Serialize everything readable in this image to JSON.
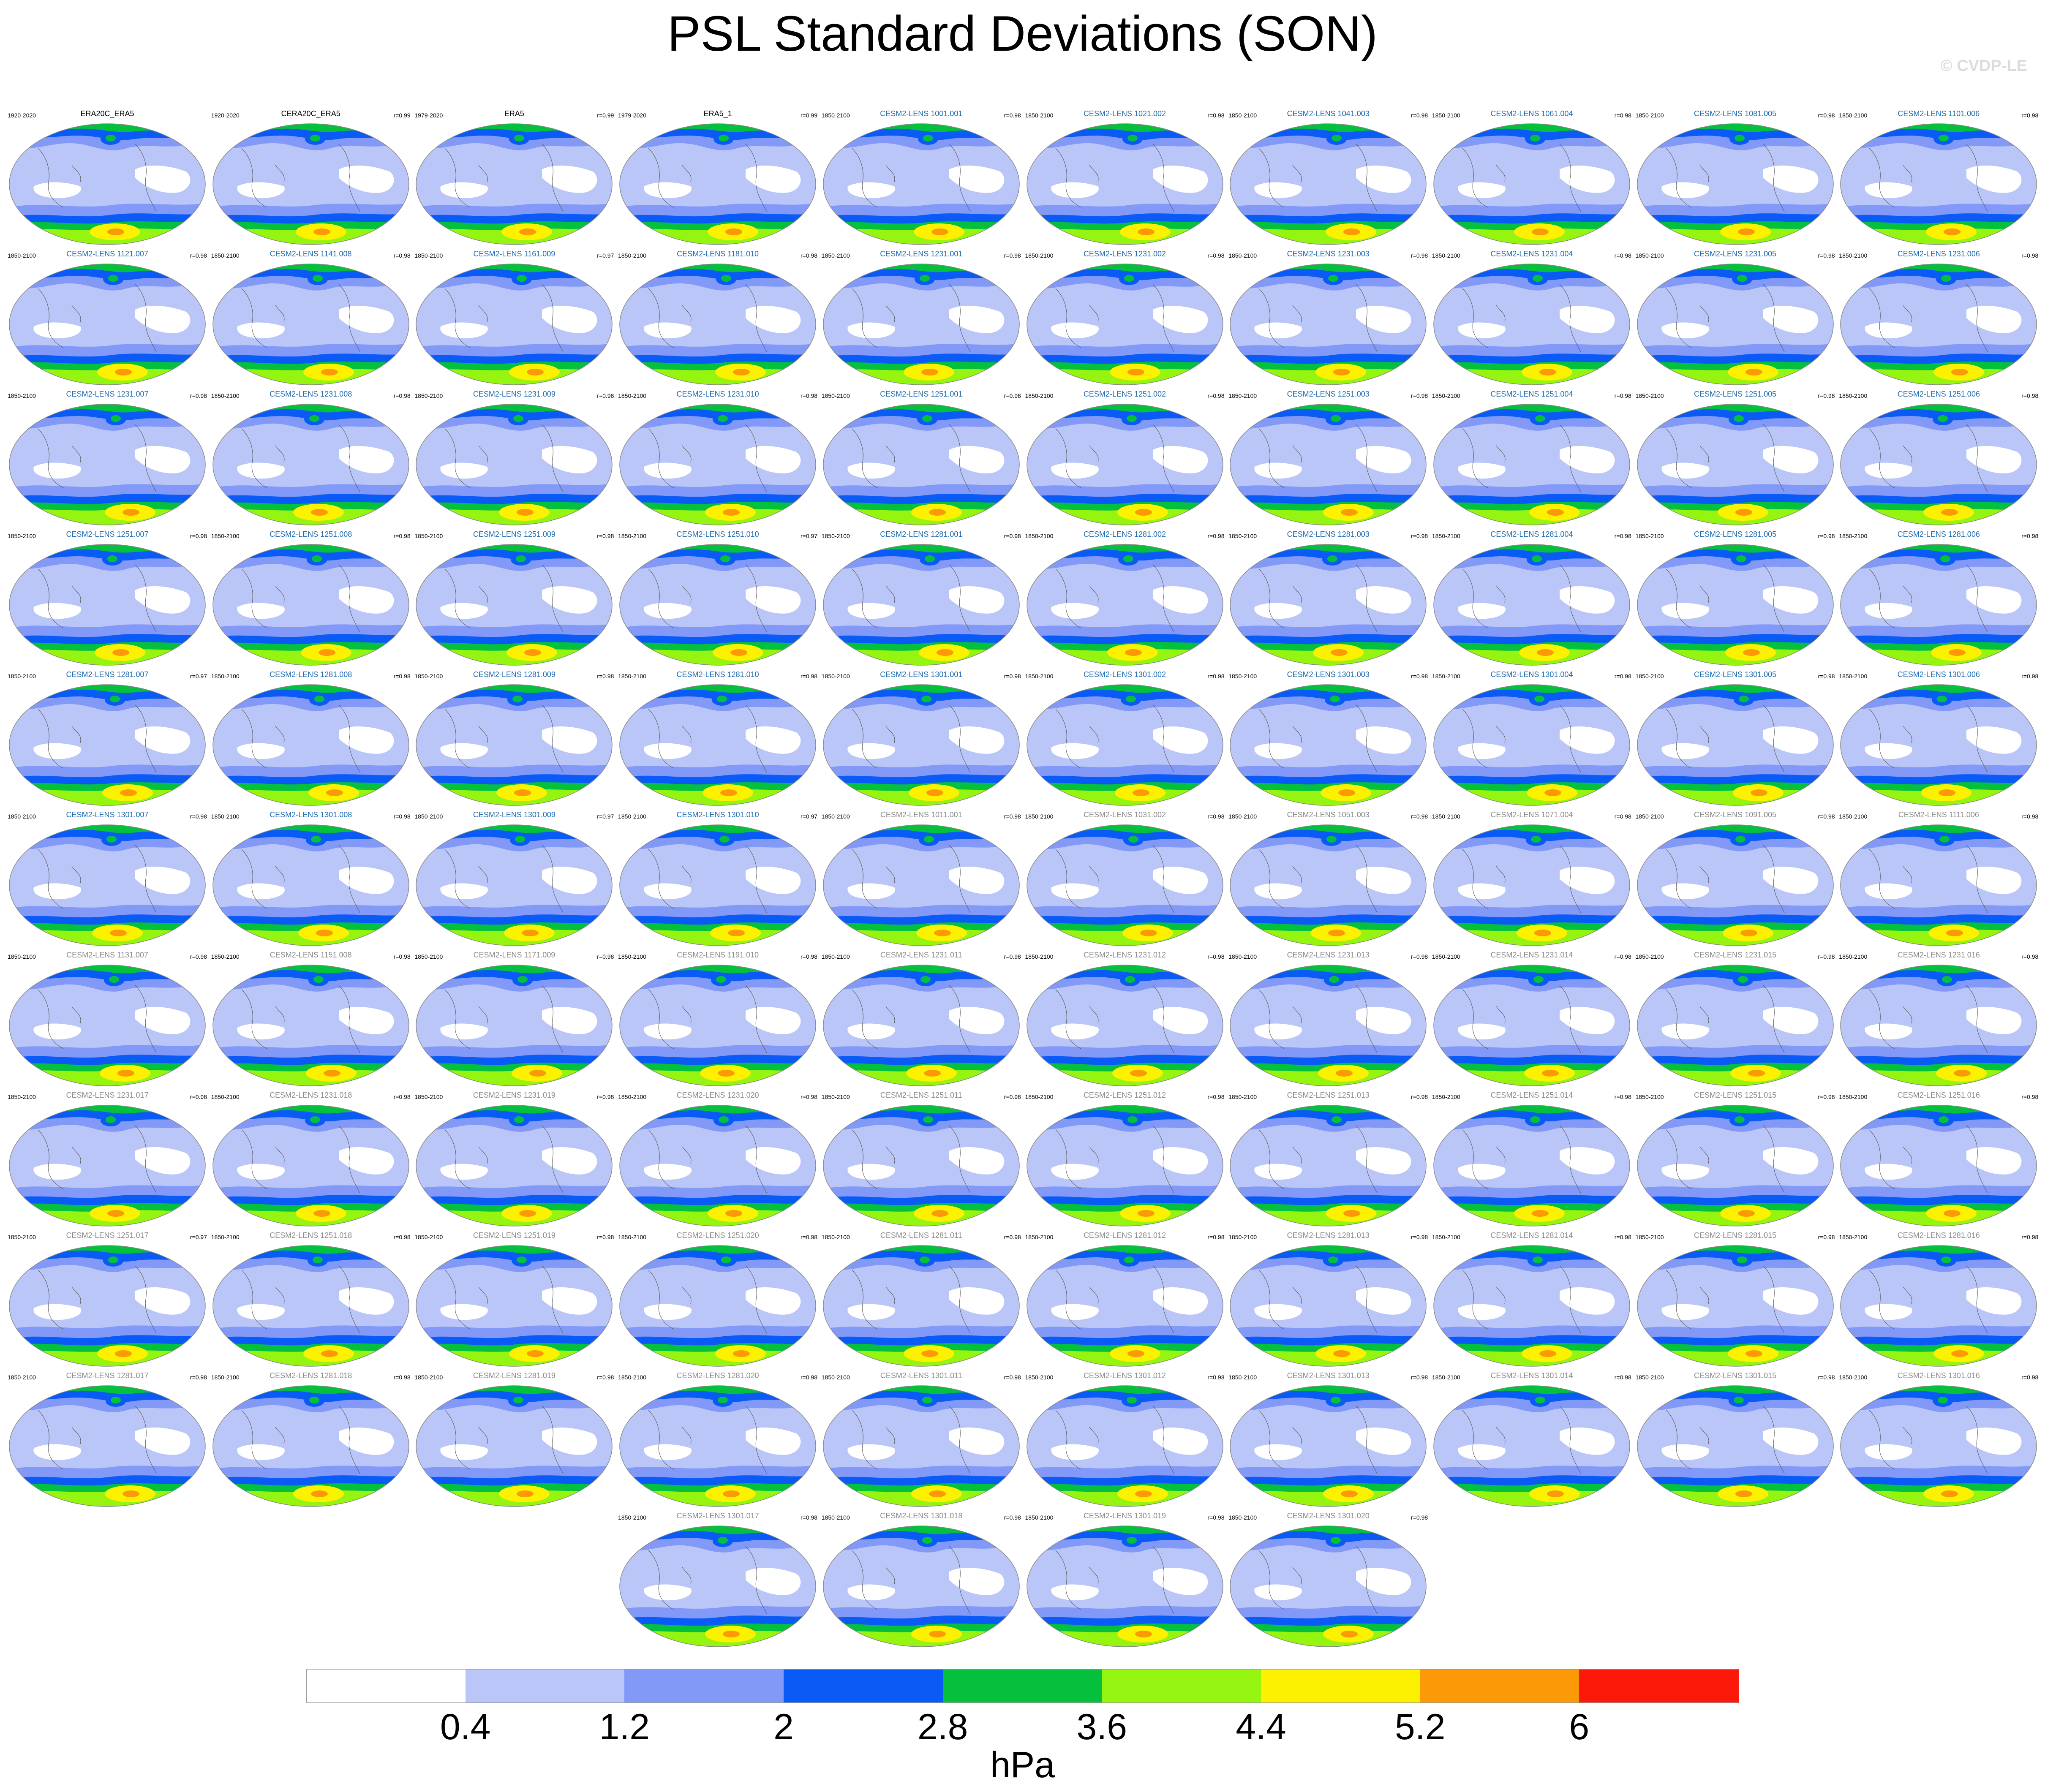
{
  "chart_data": {
    "type": "map-panels",
    "title": "PSL Standard Deviations (SON)",
    "watermark": "© CVDP-LE",
    "units": "hPa",
    "colorbar": {
      "levels": [
        "0.4",
        "1.2",
        "2",
        "2.8",
        "3.6",
        "4.4",
        "5.2",
        "6"
      ],
      "colors": [
        "#ffffff",
        "#b9c6f7",
        "#8299f8",
        "#0a5af5",
        "#05c03c",
        "#96f510",
        "#fbf100",
        "#fb9a06",
        "#fb1808"
      ]
    },
    "panel_colors": {
      "obs": "#000000",
      "group1": "#1f6bb0",
      "group2": "#8a8a8a"
    },
    "panels": [
      {
        "title": "ERA20C_ERA5",
        "years": "1920-2020",
        "r": "",
        "group": "obs"
      },
      {
        "title": "CERA20C_ERA5",
        "years": "1920-2020",
        "r": "r=0.99",
        "group": "obs"
      },
      {
        "title": "ERA5",
        "years": "1979-2020",
        "r": "r=0.99",
        "group": "obs"
      },
      {
        "title": "ERA5_1",
        "years": "1979-2020",
        "r": "r=0.99",
        "group": "obs"
      },
      {
        "title": "CESM2-LENS 1001.001",
        "years": "1850-2100",
        "r": "r=0.98",
        "group": "group1"
      },
      {
        "title": "CESM2-LENS 1021.002",
        "years": "1850-2100",
        "r": "r=0.98",
        "group": "group1"
      },
      {
        "title": "CESM2-LENS 1041.003",
        "years": "1850-2100",
        "r": "r=0.98",
        "group": "group1"
      },
      {
        "title": "CESM2-LENS 1061.004",
        "years": "1850-2100",
        "r": "r=0.98",
        "group": "group1"
      },
      {
        "title": "CESM2-LENS 1081.005",
        "years": "1850-2100",
        "r": "r=0.98",
        "group": "group1"
      },
      {
        "title": "CESM2-LENS 1101.006",
        "years": "1850-2100",
        "r": "r=0.98",
        "group": "group1"
      },
      {
        "title": "CESM2-LENS 1121.007",
        "years": "1850-2100",
        "r": "r=0.98",
        "group": "group1"
      },
      {
        "title": "CESM2-LENS 1141.008",
        "years": "1850-2100",
        "r": "r=0.98",
        "group": "group1"
      },
      {
        "title": "CESM2-LENS 1161.009",
        "years": "1850-2100",
        "r": "r=0.97",
        "group": "group1"
      },
      {
        "title": "CESM2-LENS 1181.010",
        "years": "1850-2100",
        "r": "r=0.98",
        "group": "group1"
      },
      {
        "title": "CESM2-LENS 1231.001",
        "years": "1850-2100",
        "r": "r=0.98",
        "group": "group1"
      },
      {
        "title": "CESM2-LENS 1231.002",
        "years": "1850-2100",
        "r": "r=0.98",
        "group": "group1"
      },
      {
        "title": "CESM2-LENS 1231.003",
        "years": "1850-2100",
        "r": "r=0.98",
        "group": "group1"
      },
      {
        "title": "CESM2-LENS 1231.004",
        "years": "1850-2100",
        "r": "r=0.98",
        "group": "group1"
      },
      {
        "title": "CESM2-LENS 1231.005",
        "years": "1850-2100",
        "r": "r=0.98",
        "group": "group1"
      },
      {
        "title": "CESM2-LENS 1231.006",
        "years": "1850-2100",
        "r": "r=0.98",
        "group": "group1"
      },
      {
        "title": "CESM2-LENS 1231.007",
        "years": "1850-2100",
        "r": "r=0.98",
        "group": "group1"
      },
      {
        "title": "CESM2-LENS 1231.008",
        "years": "1850-2100",
        "r": "r=0.98",
        "group": "group1"
      },
      {
        "title": "CESM2-LENS 1231.009",
        "years": "1850-2100",
        "r": "r=0.98",
        "group": "group1"
      },
      {
        "title": "CESM2-LENS 1231.010",
        "years": "1850-2100",
        "r": "r=0.98",
        "group": "group1"
      },
      {
        "title": "CESM2-LENS 1251.001",
        "years": "1850-2100",
        "r": "r=0.98",
        "group": "group1"
      },
      {
        "title": "CESM2-LENS 1251.002",
        "years": "1850-2100",
        "r": "r=0.98",
        "group": "group1"
      },
      {
        "title": "CESM2-LENS 1251.003",
        "years": "1850-2100",
        "r": "r=0.98",
        "group": "group1"
      },
      {
        "title": "CESM2-LENS 1251.004",
        "years": "1850-2100",
        "r": "r=0.98",
        "group": "group1"
      },
      {
        "title": "CESM2-LENS 1251.005",
        "years": "1850-2100",
        "r": "r=0.98",
        "group": "group1"
      },
      {
        "title": "CESM2-LENS 1251.006",
        "years": "1850-2100",
        "r": "r=0.98",
        "group": "group1"
      },
      {
        "title": "CESM2-LENS 1251.007",
        "years": "1850-2100",
        "r": "r=0.98",
        "group": "group1"
      },
      {
        "title": "CESM2-LENS 1251.008",
        "years": "1850-2100",
        "r": "r=0.98",
        "group": "group1"
      },
      {
        "title": "CESM2-LENS 1251.009",
        "years": "1850-2100",
        "r": "r=0.98",
        "group": "group1"
      },
      {
        "title": "CESM2-LENS 1251.010",
        "years": "1850-2100",
        "r": "r=0.97",
        "group": "group1"
      },
      {
        "title": "CESM2-LENS 1281.001",
        "years": "1850-2100",
        "r": "r=0.98",
        "group": "group1"
      },
      {
        "title": "CESM2-LENS 1281.002",
        "years": "1850-2100",
        "r": "r=0.98",
        "group": "group1"
      },
      {
        "title": "CESM2-LENS 1281.003",
        "years": "1850-2100",
        "r": "r=0.98",
        "group": "group1"
      },
      {
        "title": "CESM2-LENS 1281.004",
        "years": "1850-2100",
        "r": "r=0.98",
        "group": "group1"
      },
      {
        "title": "CESM2-LENS 1281.005",
        "years": "1850-2100",
        "r": "r=0.98",
        "group": "group1"
      },
      {
        "title": "CESM2-LENS 1281.006",
        "years": "1850-2100",
        "r": "r=0.98",
        "group": "group1"
      },
      {
        "title": "CESM2-LENS 1281.007",
        "years": "1850-2100",
        "r": "r=0.97",
        "group": "group1"
      },
      {
        "title": "CESM2-LENS 1281.008",
        "years": "1850-2100",
        "r": "r=0.98",
        "group": "group1"
      },
      {
        "title": "CESM2-LENS 1281.009",
        "years": "1850-2100",
        "r": "r=0.98",
        "group": "group1"
      },
      {
        "title": "CESM2-LENS 1281.010",
        "years": "1850-2100",
        "r": "r=0.98",
        "group": "group1"
      },
      {
        "title": "CESM2-LENS 1301.001",
        "years": "1850-2100",
        "r": "r=0.98",
        "group": "group1"
      },
      {
        "title": "CESM2-LENS 1301.002",
        "years": "1850-2100",
        "r": "r=0.98",
        "group": "group1"
      },
      {
        "title": "CESM2-LENS 1301.003",
        "years": "1850-2100",
        "r": "r=0.98",
        "group": "group1"
      },
      {
        "title": "CESM2-LENS 1301.004",
        "years": "1850-2100",
        "r": "r=0.98",
        "group": "group1"
      },
      {
        "title": "CESM2-LENS 1301.005",
        "years": "1850-2100",
        "r": "r=0.98",
        "group": "group1"
      },
      {
        "title": "CESM2-LENS 1301.006",
        "years": "1850-2100",
        "r": "r=0.98",
        "group": "group1"
      },
      {
        "title": "CESM2-LENS 1301.007",
        "years": "1850-2100",
        "r": "r=0.98",
        "group": "group1"
      },
      {
        "title": "CESM2-LENS 1301.008",
        "years": "1850-2100",
        "r": "r=0.98",
        "group": "group1"
      },
      {
        "title": "CESM2-LENS 1301.009",
        "years": "1850-2100",
        "r": "r=0.97",
        "group": "group1"
      },
      {
        "title": "CESM2-LENS 1301.010",
        "years": "1850-2100",
        "r": "r=0.97",
        "group": "group1"
      },
      {
        "title": "CESM2-LENS 1011.001",
        "years": "1850-2100",
        "r": "r=0.98",
        "group": "group2"
      },
      {
        "title": "CESM2-LENS 1031.002",
        "years": "1850-2100",
        "r": "r=0.98",
        "group": "group2"
      },
      {
        "title": "CESM2-LENS 1051.003",
        "years": "1850-2100",
        "r": "r=0.98",
        "group": "group2"
      },
      {
        "title": "CESM2-LENS 1071.004",
        "years": "1850-2100",
        "r": "r=0.98",
        "group": "group2"
      },
      {
        "title": "CESM2-LENS 1091.005",
        "years": "1850-2100",
        "r": "r=0.98",
        "group": "group2"
      },
      {
        "title": "CESM2-LENS 1111.006",
        "years": "1850-2100",
        "r": "r=0.98",
        "group": "group2"
      },
      {
        "title": "CESM2-LENS 1131.007",
        "years": "1850-2100",
        "r": "r=0.98",
        "group": "group2"
      },
      {
        "title": "CESM2-LENS 1151.008",
        "years": "1850-2100",
        "r": "r=0.98",
        "group": "group2"
      },
      {
        "title": "CESM2-LENS 1171.009",
        "years": "1850-2100",
        "r": "r=0.98",
        "group": "group2"
      },
      {
        "title": "CESM2-LENS 1191.010",
        "years": "1850-2100",
        "r": "r=0.98",
        "group": "group2"
      },
      {
        "title": "CESM2-LENS 1231.011",
        "years": "1850-2100",
        "r": "r=0.98",
        "group": "group2"
      },
      {
        "title": "CESM2-LENS 1231.012",
        "years": "1850-2100",
        "r": "r=0.98",
        "group": "group2"
      },
      {
        "title": "CESM2-LENS 1231.013",
        "years": "1850-2100",
        "r": "r=0.98",
        "group": "group2"
      },
      {
        "title": "CESM2-LENS 1231.014",
        "years": "1850-2100",
        "r": "r=0.98",
        "group": "group2"
      },
      {
        "title": "CESM2-LENS 1231.015",
        "years": "1850-2100",
        "r": "r=0.98",
        "group": "group2"
      },
      {
        "title": "CESM2-LENS 1231.016",
        "years": "1850-2100",
        "r": "r=0.98",
        "group": "group2"
      },
      {
        "title": "CESM2-LENS 1231.017",
        "years": "1850-2100",
        "r": "r=0.98",
        "group": "group2"
      },
      {
        "title": "CESM2-LENS 1231.018",
        "years": "1850-2100",
        "r": "r=0.98",
        "group": "group2"
      },
      {
        "title": "CESM2-LENS 1231.019",
        "years": "1850-2100",
        "r": "r=0.98",
        "group": "group2"
      },
      {
        "title": "CESM2-LENS 1231.020",
        "years": "1850-2100",
        "r": "r=0.98",
        "group": "group2"
      },
      {
        "title": "CESM2-LENS 1251.011",
        "years": "1850-2100",
        "r": "r=0.98",
        "group": "group2"
      },
      {
        "title": "CESM2-LENS 1251.012",
        "years": "1850-2100",
        "r": "r=0.98",
        "group": "group2"
      },
      {
        "title": "CESM2-LENS 1251.013",
        "years": "1850-2100",
        "r": "r=0.98",
        "group": "group2"
      },
      {
        "title": "CESM2-LENS 1251.014",
        "years": "1850-2100",
        "r": "r=0.98",
        "group": "group2"
      },
      {
        "title": "CESM2-LENS 1251.015",
        "years": "1850-2100",
        "r": "r=0.98",
        "group": "group2"
      },
      {
        "title": "CESM2-LENS 1251.016",
        "years": "1850-2100",
        "r": "r=0.98",
        "group": "group2"
      },
      {
        "title": "CESM2-LENS 1251.017",
        "years": "1850-2100",
        "r": "r=0.97",
        "group": "group2"
      },
      {
        "title": "CESM2-LENS 1251.018",
        "years": "1850-2100",
        "r": "r=0.98",
        "group": "group2"
      },
      {
        "title": "CESM2-LENS 1251.019",
        "years": "1850-2100",
        "r": "r=0.98",
        "group": "group2"
      },
      {
        "title": "CESM2-LENS 1251.020",
        "years": "1850-2100",
        "r": "r=0.98",
        "group": "group2"
      },
      {
        "title": "CESM2-LENS 1281.011",
        "years": "1850-2100",
        "r": "r=0.98",
        "group": "group2"
      },
      {
        "title": "CESM2-LENS 1281.012",
        "years": "1850-2100",
        "r": "r=0.98",
        "group": "group2"
      },
      {
        "title": "CESM2-LENS 1281.013",
        "years": "1850-2100",
        "r": "r=0.98",
        "group": "group2"
      },
      {
        "title": "CESM2-LENS 1281.014",
        "years": "1850-2100",
        "r": "r=0.98",
        "group": "group2"
      },
      {
        "title": "CESM2-LENS 1281.015",
        "years": "1850-2100",
        "r": "r=0.98",
        "group": "group2"
      },
      {
        "title": "CESM2-LENS 1281.016",
        "years": "1850-2100",
        "r": "r=0.98",
        "group": "group2"
      },
      {
        "title": "CESM2-LENS 1281.017",
        "years": "1850-2100",
        "r": "r=0.98",
        "group": "group2"
      },
      {
        "title": "CESM2-LENS 1281.018",
        "years": "1850-2100",
        "r": "r=0.98",
        "group": "group2"
      },
      {
        "title": "CESM2-LENS 1281.019",
        "years": "1850-2100",
        "r": "r=0.98",
        "group": "group2"
      },
      {
        "title": "CESM2-LENS 1281.020",
        "years": "1850-2100",
        "r": "r=0.98",
        "group": "group2"
      },
      {
        "title": "CESM2-LENS 1301.011",
        "years": "1850-2100",
        "r": "r=0.98",
        "group": "group2"
      },
      {
        "title": "CESM2-LENS 1301.012",
        "years": "1850-2100",
        "r": "r=0.98",
        "group": "group2"
      },
      {
        "title": "CESM2-LENS 1301.013",
        "years": "1850-2100",
        "r": "r=0.98",
        "group": "group2"
      },
      {
        "title": "CESM2-LENS 1301.014",
        "years": "1850-2100",
        "r": "r=0.98",
        "group": "group2"
      },
      {
        "title": "CESM2-LENS 1301.015",
        "years": "1850-2100",
        "r": "r=0.98",
        "group": "group2"
      },
      {
        "title": "CESM2-LENS 1301.016",
        "years": "1850-2100",
        "r": "r=0.98",
        "group": "group2"
      },
      {
        "title": "CESM2-LENS 1301.017",
        "years": "1850-2100",
        "r": "r=0.98",
        "group": "group2"
      },
      {
        "title": "CESM2-LENS 1301.018",
        "years": "1850-2100",
        "r": "r=0.98",
        "group": "group2"
      },
      {
        "title": "CESM2-LENS 1301.019",
        "years": "1850-2100",
        "r": "r=0.98",
        "group": "group2"
      },
      {
        "title": "CESM2-LENS 1301.020",
        "years": "1850-2100",
        "r": "r=0.98",
        "group": "group2"
      }
    ]
  }
}
